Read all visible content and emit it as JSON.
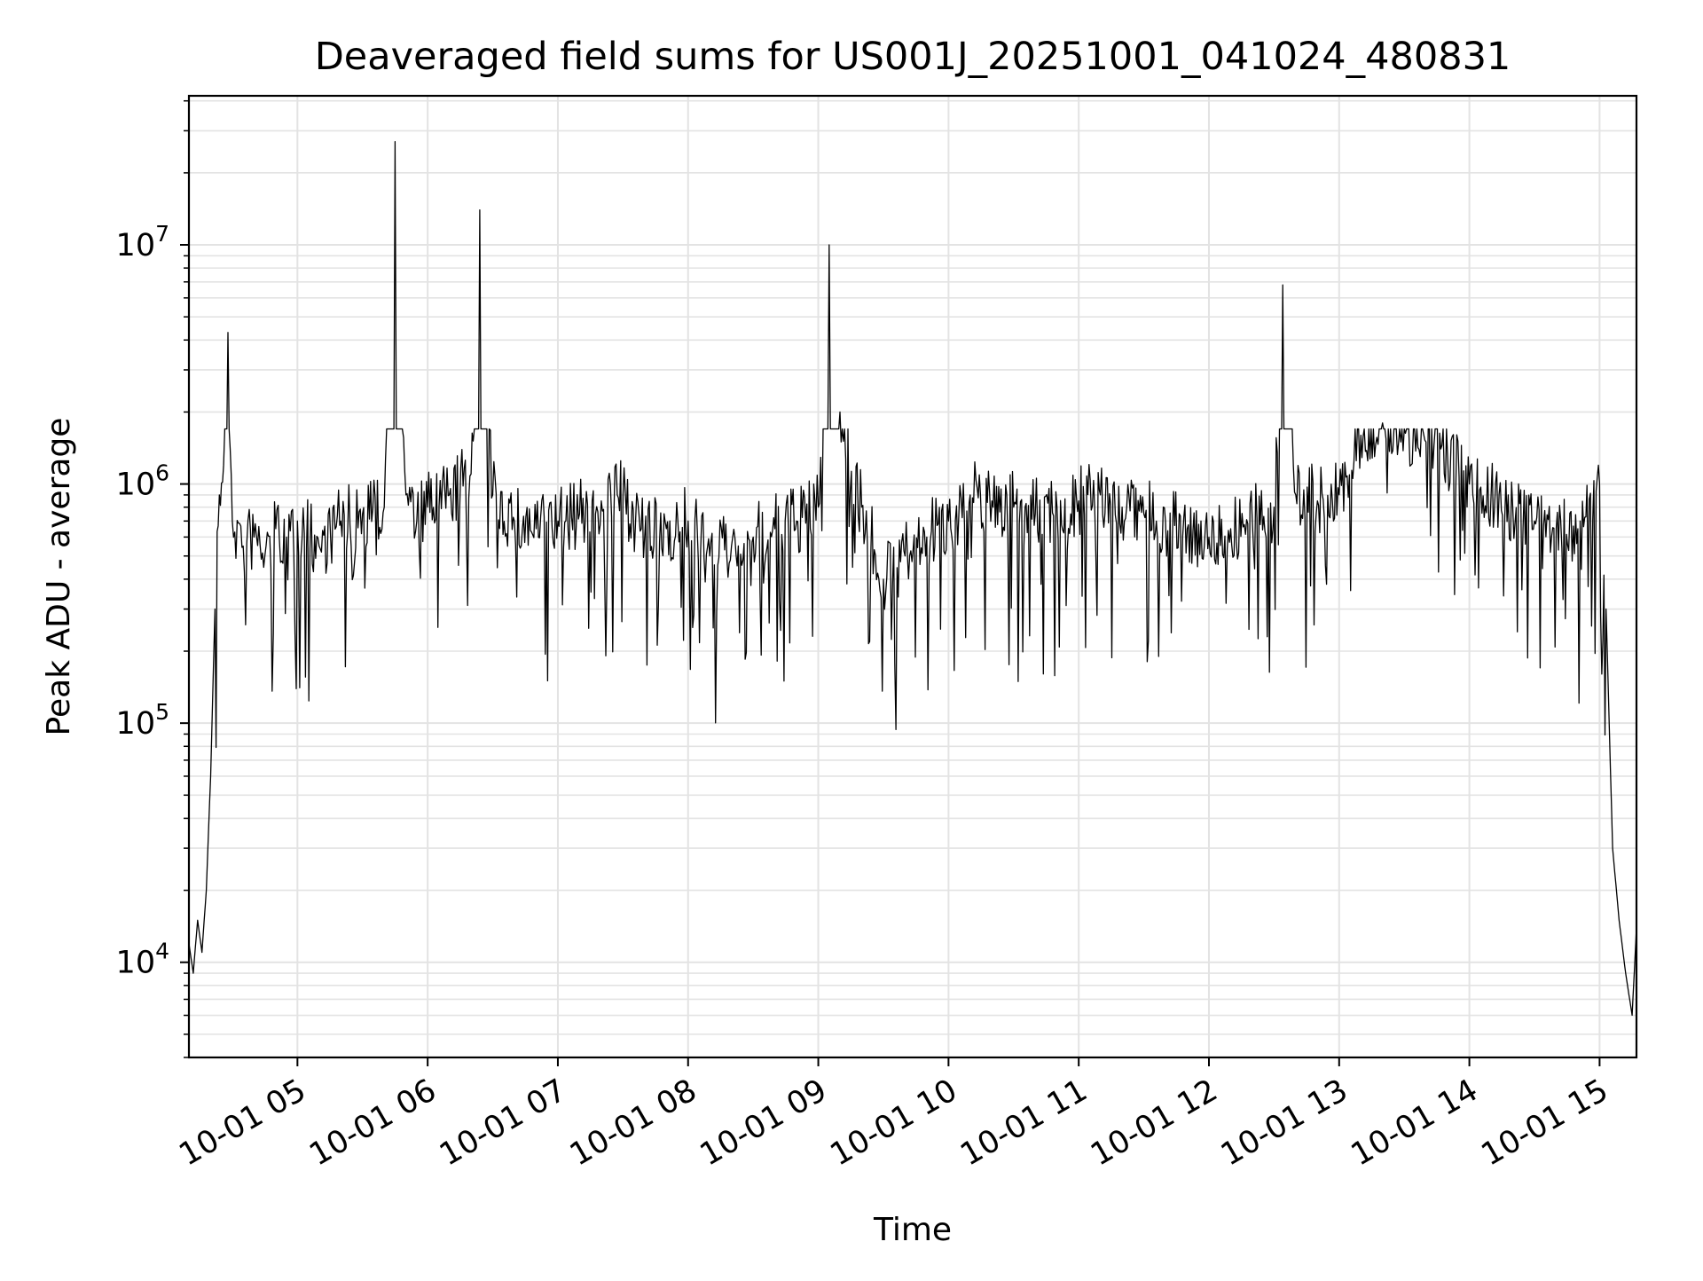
{
  "chart_data": {
    "type": "line",
    "title": "Deaveraged field sums for US001J_20251001_041024_480831",
    "xlabel": "Time",
    "ylabel": "Peak ADU - average",
    "x_scale": "time",
    "y_scale": "log",
    "xlim": [
      "10-01 04:10",
      "10-01 15:17"
    ],
    "ylim": [
      4000,
      42000000
    ],
    "grid": {
      "major": true,
      "minor": true,
      "color": "#e3e3e3"
    },
    "legend": "none",
    "line_color": "#000000",
    "x_ticks": [
      {
        "time": "10-01 05:00",
        "label": "10-01 05"
      },
      {
        "time": "10-01 06:00",
        "label": "10-01 06"
      },
      {
        "time": "10-01 07:00",
        "label": "10-01 07"
      },
      {
        "time": "10-01 08:00",
        "label": "10-01 08"
      },
      {
        "time": "10-01 09:00",
        "label": "10-01 09"
      },
      {
        "time": "10-01 10:00",
        "label": "10-01 10"
      },
      {
        "time": "10-01 11:00",
        "label": "10-01 11"
      },
      {
        "time": "10-01 12:00",
        "label": "10-01 12"
      },
      {
        "time": "10-01 13:00",
        "label": "10-01 13"
      },
      {
        "time": "10-01 14:00",
        "label": "10-01 14"
      },
      {
        "time": "10-01 15:00",
        "label": "10-01 15"
      }
    ],
    "y_ticks": [
      {
        "value": 10000,
        "base": "10",
        "exp": "4"
      },
      {
        "value": 100000,
        "base": "10",
        "exp": "5"
      },
      {
        "value": 1000000,
        "base": "10",
        "exp": "6"
      },
      {
        "value": 10000000,
        "base": "10",
        "exp": "7"
      }
    ],
    "series": [
      {
        "x": [
          "10-01 04:10",
          "10-01 04:12",
          "10-01 04:14",
          "10-01 04:16",
          "10-01 04:18",
          "10-01 04:20",
          "10-01 04:22",
          "10-01 04:24",
          "10-01 04:26",
          "10-01 04:28",
          "10-01 04:30",
          "10-01 04:35",
          "10-01 04:40",
          "10-01 04:45",
          "10-01 04:50",
          "10-01 04:55",
          "10-01 05:00",
          "10-01 05:10",
          "10-01 05:20",
          "10-01 05:30",
          "10-01 05:40",
          "10-01 05:45",
          "10-01 05:50",
          "10-01 05:55",
          "10-01 06:00",
          "10-01 06:10",
          "10-01 06:20",
          "10-01 06:24",
          "10-01 06:30",
          "10-01 06:40",
          "10-01 06:50",
          "10-01 07:00",
          "10-01 07:10",
          "10-01 07:20",
          "10-01 07:30",
          "10-01 07:40",
          "10-01 07:50",
          "10-01 08:00",
          "10-01 08:10",
          "10-01 08:20",
          "10-01 08:30",
          "10-01 08:40",
          "10-01 08:50",
          "10-01 09:00",
          "10-01 09:05",
          "10-01 09:10",
          "10-01 09:20",
          "10-01 09:30",
          "10-01 09:40",
          "10-01 09:50",
          "10-01 10:00",
          "10-01 10:10",
          "10-01 10:20",
          "10-01 10:30",
          "10-01 10:40",
          "10-01 10:50",
          "10-01 11:00",
          "10-01 11:10",
          "10-01 11:20",
          "10-01 11:30",
          "10-01 11:40",
          "10-01 11:50",
          "10-01 12:00",
          "10-01 12:10",
          "10-01 12:20",
          "10-01 12:30",
          "10-01 12:34",
          "10-01 12:40",
          "10-01 12:50",
          "10-01 13:00",
          "10-01 13:10",
          "10-01 13:20",
          "10-01 13:30",
          "10-01 13:40",
          "10-01 13:50",
          "10-01 14:00",
          "10-01 14:10",
          "10-01 14:20",
          "10-01 14:30",
          "10-01 14:40",
          "10-01 14:50",
          "10-01 15:00",
          "10-01 15:03",
          "10-01 15:06",
          "10-01 15:09",
          "10-01 15:12",
          "10-01 15:15",
          "10-01 15:17"
        ],
        "y": [
          12000,
          9000,
          15000,
          11000,
          20000,
          60000,
          300000,
          900000,
          1200000,
          4300000,
          700000,
          550000,
          600000,
          500000,
          650000,
          600000,
          700000,
          550000,
          700000,
          750000,
          800000,
          27000000,
          900000,
          700000,
          800000,
          900000,
          1100000,
          14000000,
          900000,
          700000,
          650000,
          700000,
          750000,
          850000,
          900000,
          600000,
          650000,
          700000,
          500000,
          550000,
          600000,
          650000,
          700000,
          800000,
          10000000,
          2000000,
          800000,
          400000,
          500000,
          600000,
          700000,
          900000,
          850000,
          800000,
          750000,
          800000,
          850000,
          900000,
          800000,
          750000,
          700000,
          650000,
          600000,
          650000,
          700000,
          800000,
          6800000,
          900000,
          850000,
          900000,
          1600000,
          1800000,
          1700000,
          1500000,
          1300000,
          1000000,
          900000,
          800000,
          700000,
          650000,
          650000,
          1000000,
          300000,
          30000,
          15000,
          9000,
          6000,
          14000
        ]
      }
    ]
  }
}
